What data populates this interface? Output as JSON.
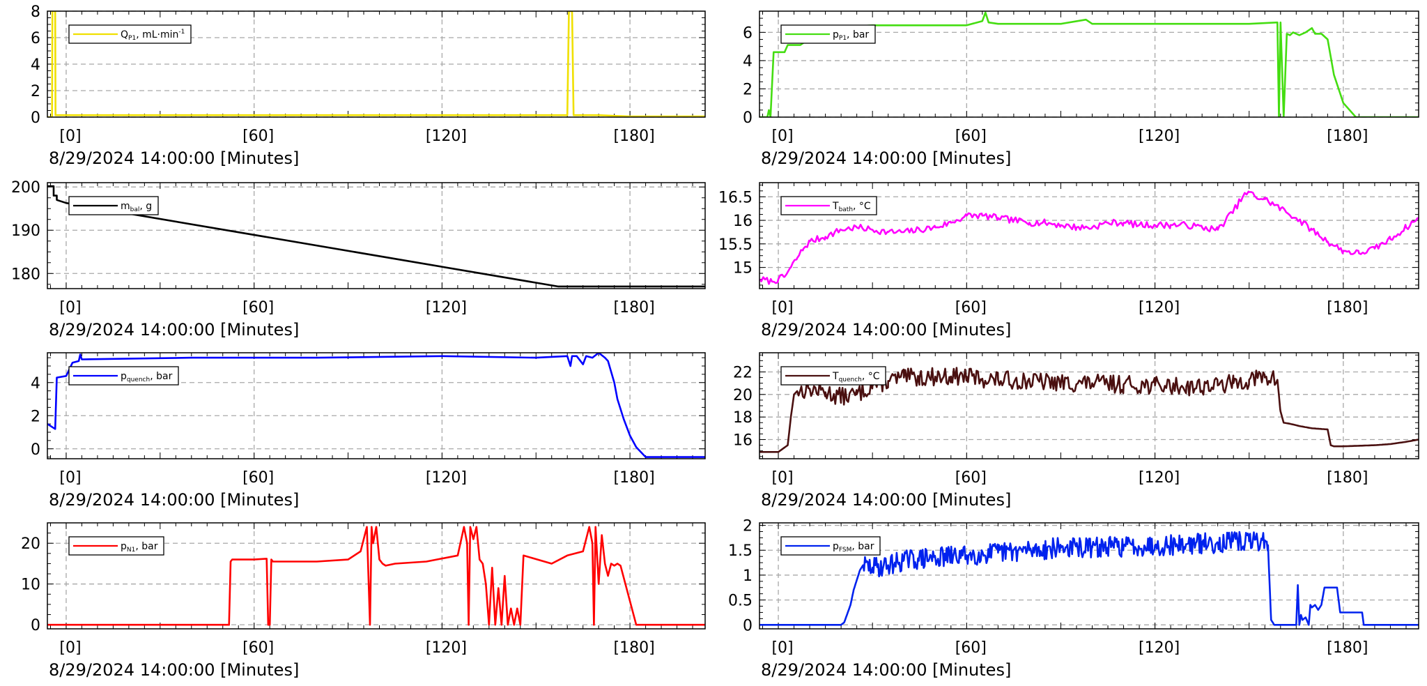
{
  "chart_data": [
    {
      "type": "line",
      "id": "qp1",
      "color": "#f0e000",
      "legend": {
        "main": "Q",
        "sub": "P1",
        "rest": ", mL·min",
        "sup": "-1"
      },
      "xlim": [
        -6,
        204
      ],
      "ylim": [
        0,
        8
      ],
      "yticks": [
        0,
        2,
        4,
        6,
        8
      ],
      "ytick_labels": [
        "0",
        "2",
        "4",
        "6",
        "8"
      ],
      "xticks": [
        0,
        60,
        120,
        180
      ],
      "xtick_labels": [
        "[0]",
        "[60]",
        "[120]",
        "[180]"
      ],
      "xlabel": "8/29/2024 14:00:00 [Minutes]",
      "x": [
        -6,
        -4.5,
        -4.4,
        -3.5,
        -3.4,
        0,
        60,
        120,
        160,
        160.5,
        161.5,
        162,
        170,
        180,
        204
      ],
      "y": [
        0,
        0,
        8,
        8,
        0.15,
        0.15,
        0.15,
        0.15,
        0.15,
        8,
        8,
        0.15,
        0.15,
        0.05,
        0.05
      ]
    },
    {
      "type": "line",
      "id": "mbal",
      "color": "#000000",
      "legend": {
        "main": "m",
        "sub": "bal",
        "rest": ", g",
        "sup": ""
      },
      "xlim": [
        -6,
        204
      ],
      "ylim": [
        176.5,
        201
      ],
      "yticks": [
        180,
        190,
        200
      ],
      "ytick_labels": [
        "180",
        "190",
        "200"
      ],
      "xticks": [
        0,
        60,
        120,
        180
      ],
      "xtick_labels": [
        "[0]",
        "[60]",
        "[120]",
        "[180]"
      ],
      "xlabel": "8/29/2024 14:00:00 [Minutes]",
      "x": [
        -6,
        -4,
        -4,
        -3,
        -3,
        0,
        157,
        204
      ],
      "y": [
        200.2,
        200.2,
        198,
        198,
        197,
        196.3,
        177,
        177
      ]
    },
    {
      "type": "line",
      "id": "pquench",
      "color": "#0000ff",
      "legend": {
        "main": "p",
        "sub": "quench",
        "rest": ", bar",
        "sup": ""
      },
      "xlim": [
        -6,
        204
      ],
      "ylim": [
        -0.6,
        5.8
      ],
      "yticks": [
        0,
        2,
        4
      ],
      "ytick_labels": [
        "0",
        "2",
        "4"
      ],
      "xticks": [
        0,
        60,
        120,
        180
      ],
      "xtick_labels": [
        "[0]",
        "[60]",
        "[120]",
        "[180]"
      ],
      "xlabel": "8/29/2024 14:00:00 [Minutes]",
      "x": [
        -6,
        -3.5,
        -3,
        0,
        2,
        4,
        4.5,
        5,
        40,
        80,
        120,
        150,
        160,
        161,
        161.5,
        163,
        165,
        166,
        168,
        170,
        172,
        173,
        175,
        176,
        178,
        180,
        182,
        185,
        204
      ],
      "y": [
        1.5,
        1.2,
        4.3,
        4.4,
        5.2,
        5.3,
        5.7,
        5.4,
        5.5,
        5.5,
        5.6,
        5.5,
        5.6,
        5.0,
        5.6,
        5.6,
        5.1,
        5.6,
        5.5,
        5.8,
        5.5,
        5.3,
        4.0,
        3.0,
        1.8,
        0.8,
        0.1,
        -0.5,
        -0.5
      ]
    },
    {
      "type": "line",
      "id": "pn1",
      "color": "#ff0000",
      "legend": {
        "main": "p",
        "sub": "N1",
        "rest": ", bar",
        "sup": ""
      },
      "xlim": [
        -6,
        204
      ],
      "ylim": [
        -1,
        25
      ],
      "yticks": [
        0,
        10,
        20
      ],
      "ytick_labels": [
        "0",
        "10",
        "20"
      ],
      "xticks": [
        0,
        60,
        120,
        180
      ],
      "xtick_labels": [
        "[0]",
        "[60]",
        "[120]",
        "[180]"
      ],
      "xlabel": "8/29/2024 14:00:00 [Minutes]",
      "x": [
        -6,
        52,
        52.5,
        53,
        60,
        64,
        64.5,
        65,
        65.5,
        66,
        80,
        90,
        94,
        96,
        97,
        97.5,
        98,
        99,
        100,
        101,
        102,
        105,
        115,
        125,
        127,
        128,
        128.5,
        129,
        130,
        131,
        132,
        133,
        134,
        135,
        136,
        137,
        138,
        139,
        140,
        141,
        142,
        143,
        144,
        145,
        146,
        155,
        160,
        165,
        167,
        168,
        168.5,
        169,
        170,
        171,
        172,
        173,
        174,
        175,
        176,
        177,
        182,
        204
      ],
      "y": [
        0,
        0,
        15.5,
        16,
        16,
        16.2,
        0,
        0,
        16,
        15.5,
        15.5,
        16,
        18,
        24,
        0,
        24,
        20,
        24,
        16,
        15,
        14.5,
        15,
        15.5,
        17,
        24,
        20,
        0,
        24,
        21,
        24,
        16,
        15,
        10,
        0,
        14,
        0,
        9,
        0,
        12,
        0,
        4,
        0,
        4,
        0,
        17,
        15,
        17,
        18,
        24,
        20,
        0,
        24,
        10,
        22,
        15,
        12,
        15,
        14.5,
        15,
        14.5,
        0,
        0
      ]
    },
    {
      "type": "line",
      "id": "pp1",
      "color": "#44dd11",
      "legend": {
        "main": "p",
        "sub": "P1",
        "rest": ", bar",
        "sup": ""
      },
      "xlim": [
        -6,
        204
      ],
      "ylim": [
        0,
        7.5
      ],
      "yticks": [
        0,
        2,
        4,
        6
      ],
      "ytick_labels": [
        "0",
        "2",
        "4",
        "6"
      ],
      "xticks": [
        0,
        60,
        120,
        180
      ],
      "xtick_labels": [
        "[0]",
        "[60]",
        "[120]",
        "[180]"
      ],
      "xlabel": "8/29/2024 14:00:00 [Minutes]",
      "x": [
        -6,
        -3.5,
        -3,
        -2.5,
        -1.5,
        2,
        3,
        7,
        15,
        30,
        60,
        65,
        66,
        67,
        70,
        90,
        98,
        100,
        120,
        150,
        159,
        159.5,
        160,
        161,
        162,
        163,
        164,
        166,
        168,
        170,
        171,
        173,
        175,
        177,
        180,
        184,
        204
      ],
      "y": [
        0,
        0,
        0.5,
        0,
        4.6,
        4.6,
        5.1,
        5.1,
        6.3,
        6.5,
        6.5,
        6.8,
        7.4,
        6.7,
        6.6,
        6.6,
        6.9,
        6.6,
        6.6,
        6.6,
        6.7,
        0,
        6.7,
        0,
        5.9,
        5.8,
        6.0,
        5.8,
        6.0,
        6.3,
        5.9,
        5.9,
        5.5,
        3.0,
        1.0,
        0,
        0
      ]
    },
    {
      "type": "line",
      "id": "tbath",
      "color": "#ff00ff",
      "legend": {
        "main": "T",
        "sub": "bath",
        "rest": ", °C",
        "sup": ""
      },
      "xlim": [
        -6,
        204
      ],
      "ylim": [
        14.55,
        16.8
      ],
      "yticks": [
        15,
        15.5,
        16,
        16.5
      ],
      "ytick_labels": [
        "15",
        "15.5",
        "16",
        "16.5"
      ],
      "xticks": [
        0,
        60,
        120,
        180
      ],
      "xtick_labels": [
        "[0]",
        "[60]",
        "[120]",
        "[180]"
      ],
      "xlabel": "8/29/2024 14:00:00 [Minutes]",
      "x": [
        -6,
        -2,
        0,
        2,
        4,
        6,
        8,
        10,
        15,
        20,
        25,
        30,
        35,
        40,
        45,
        50,
        55,
        60,
        65,
        70,
        75,
        80,
        85,
        90,
        95,
        100,
        105,
        110,
        115,
        120,
        125,
        130,
        135,
        140,
        145,
        148,
        150,
        152,
        155,
        160,
        165,
        170,
        175,
        180,
        185,
        190,
        195,
        200,
        204
      ],
      "y": [
        14.75,
        14.7,
        14.75,
        14.8,
        15.0,
        15.2,
        15.4,
        15.55,
        15.65,
        15.8,
        15.85,
        15.8,
        15.75,
        15.75,
        15.8,
        15.85,
        15.95,
        16.1,
        16.1,
        16.05,
        16.0,
        15.95,
        15.95,
        15.9,
        15.85,
        15.85,
        15.95,
        15.95,
        15.9,
        15.9,
        15.9,
        15.9,
        15.85,
        15.8,
        16.2,
        16.5,
        16.6,
        16.5,
        16.45,
        16.25,
        16.05,
        15.8,
        15.55,
        15.35,
        15.3,
        15.4,
        15.6,
        15.85,
        16.05
      ],
      "noise": 0.14,
      "noise_step": 0.6,
      "noise_seed": 7
    },
    {
      "type": "line",
      "id": "tquench",
      "color": "#4a1010",
      "legend": {
        "main": "T",
        "sub": "quench",
        "rest": ", °C",
        "sup": ""
      },
      "xlim": [
        -6,
        204
      ],
      "ylim": [
        14.3,
        23.7
      ],
      "yticks": [
        16,
        18,
        20,
        22
      ],
      "ytick_labels": [
        "16",
        "18",
        "20",
        "22"
      ],
      "xticks": [
        0,
        60,
        120,
        180
      ],
      "xtick_labels": [
        "[0]",
        "[60]",
        "[120]",
        "[180]"
      ],
      "xlabel": "8/29/2024 14:00:00 [Minutes]",
      "x": [
        -6,
        0,
        3,
        4,
        5,
        6,
        10,
        15,
        20,
        25,
        30,
        35,
        40,
        45,
        50,
        55,
        60,
        65,
        70,
        80,
        90,
        100,
        110,
        120,
        130,
        140,
        145,
        150,
        155,
        159,
        160,
        161,
        163,
        166,
        170,
        175,
        176,
        177,
        180,
        185,
        190,
        195,
        200,
        204
      ],
      "y": [
        14.9,
        14.9,
        15.5,
        18.0,
        20.0,
        20.3,
        20.5,
        20.2,
        19.8,
        20.0,
        20.8,
        21.2,
        21.5,
        21.5,
        21.6,
        21.6,
        21.6,
        21.4,
        21.3,
        21.2,
        21.0,
        21.0,
        20.9,
        20.8,
        20.7,
        20.8,
        21.0,
        21.3,
        21.5,
        21.3,
        18.5,
        17.5,
        17.4,
        17.2,
        17.0,
        16.9,
        15.5,
        15.4,
        15.4,
        15.45,
        15.5,
        15.6,
        15.8,
        16.0
      ],
      "noise": 1.6,
      "noise_step": 0.45,
      "noise_seed": 13,
      "noise_x_range": [
        6,
        160
      ]
    },
    {
      "type": "line",
      "id": "pfsm",
      "color": "#0022ee",
      "legend": {
        "main": "p",
        "sub": "FSM",
        "rest": ", bar",
        "sup": ""
      },
      "xlim": [
        -6,
        204
      ],
      "ylim": [
        -0.08,
        2.05
      ],
      "yticks": [
        0,
        0.5,
        1,
        1.5,
        2
      ],
      "ytick_labels": [
        "0",
        "0.5",
        "1",
        "1.5",
        "2"
      ],
      "xticks": [
        0,
        60,
        120,
        180
      ],
      "xtick_labels": [
        "[0]",
        "[60]",
        "[120]",
        "[180]"
      ],
      "xlabel": "8/29/2024 14:00:00 [Minutes]",
      "x": [
        -6,
        15,
        20,
        21,
        23,
        24,
        25,
        26,
        27,
        30,
        35,
        40,
        50,
        60,
        70,
        80,
        90,
        100,
        110,
        120,
        130,
        140,
        150,
        155,
        156,
        157,
        158,
        160,
        165,
        165.5,
        166,
        166.5,
        167,
        168,
        169,
        169.5,
        170,
        171,
        172,
        173,
        174,
        175,
        176,
        177,
        178,
        179,
        180,
        182,
        186,
        186.5,
        204
      ],
      "y": [
        0,
        0,
        0,
        0.05,
        0.4,
        0.7,
        0.9,
        1.1,
        1.2,
        1.15,
        1.2,
        1.3,
        1.35,
        1.4,
        1.45,
        1.5,
        1.55,
        1.55,
        1.58,
        1.6,
        1.62,
        1.65,
        1.68,
        1.7,
        1.6,
        0.1,
        0,
        0,
        0,
        0.8,
        0,
        0.2,
        0.1,
        0.15,
        0,
        0.4,
        0.35,
        0.4,
        0.3,
        0.4,
        0.75,
        0.75,
        0.75,
        0.75,
        0.75,
        0.25,
        0.25,
        0.25,
        0.25,
        0,
        0
      ],
      "noise": 0.42,
      "noise_step": 0.3,
      "noise_seed": 29,
      "noise_x_range": [
        27,
        156
      ]
    }
  ]
}
